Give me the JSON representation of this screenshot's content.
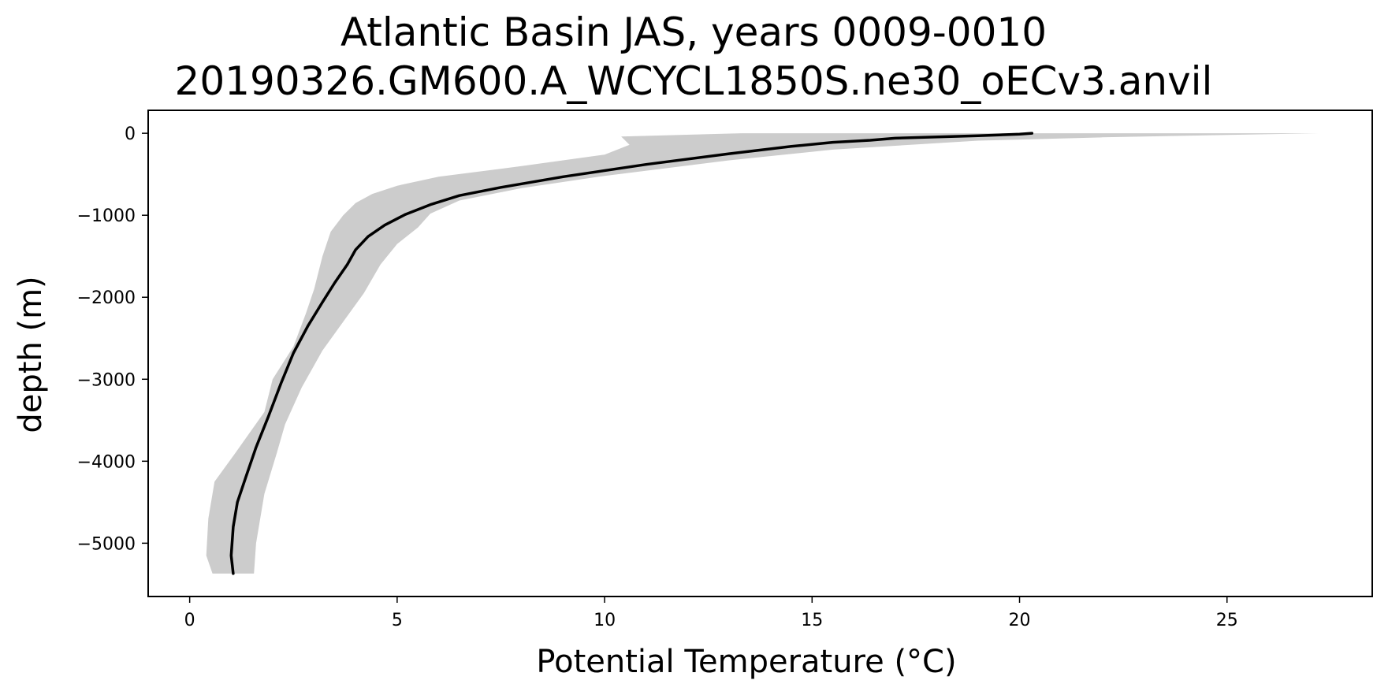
{
  "chart_data": {
    "type": "line",
    "title": "Atlantic Basin JAS, years 0009-0010",
    "subtitle": "20190326.GM600.A_WCYCL1850S.ne30_oECv3.anvil",
    "xlabel": "Potential Temperature (°C)",
    "ylabel": "depth (m)",
    "xlim": [
      -1.0,
      28.5
    ],
    "ylim": [
      -5650,
      280
    ],
    "xticks": [
      0,
      5,
      10,
      15,
      20,
      25
    ],
    "yticks": [
      0,
      -1000,
      -2000,
      -3000,
      -4000,
      -5000
    ],
    "xtick_labels": [
      "0",
      "5",
      "10",
      "15",
      "20",
      "25"
    ],
    "ytick_labels": [
      "0",
      "−1000",
      "−2000",
      "−3000",
      "−4000",
      "−5000"
    ],
    "grid": false,
    "colors": {
      "mean_line": "#000000",
      "spread_band": "#cccccc"
    },
    "series": [
      {
        "name": "mean",
        "points": [
          [
            20.3,
            0
          ],
          [
            20.0,
            -10
          ],
          [
            19.0,
            -30
          ],
          [
            17.0,
            -60
          ],
          [
            16.4,
            -85
          ],
          [
            15.5,
            -110
          ],
          [
            14.5,
            -160
          ],
          [
            13.0,
            -250
          ],
          [
            11.0,
            -380
          ],
          [
            9.0,
            -530
          ],
          [
            7.5,
            -660
          ],
          [
            6.5,
            -760
          ],
          [
            5.8,
            -870
          ],
          [
            5.2,
            -990
          ],
          [
            4.7,
            -1120
          ],
          [
            4.3,
            -1260
          ],
          [
            4.0,
            -1420
          ],
          [
            3.8,
            -1600
          ],
          [
            3.5,
            -1820
          ],
          [
            3.2,
            -2060
          ],
          [
            2.85,
            -2350
          ],
          [
            2.5,
            -2680
          ],
          [
            2.2,
            -3050
          ],
          [
            1.9,
            -3450
          ],
          [
            1.6,
            -3830
          ],
          [
            1.35,
            -4200
          ],
          [
            1.15,
            -4500
          ],
          [
            1.05,
            -4800
          ],
          [
            1.0,
            -5150
          ],
          [
            1.05,
            -5370
          ]
        ]
      },
      {
        "name": "spread",
        "upper": [
          [
            27.2,
            0
          ],
          [
            25.0,
            -20
          ],
          [
            22.0,
            -50
          ],
          [
            19.0,
            -90
          ],
          [
            15.5,
            -200
          ],
          [
            13.0,
            -330
          ],
          [
            10.0,
            -520
          ],
          [
            8.0,
            -670
          ],
          [
            6.5,
            -820
          ],
          [
            5.8,
            -980
          ],
          [
            5.5,
            -1150
          ],
          [
            5.0,
            -1350
          ],
          [
            4.6,
            -1600
          ],
          [
            4.2,
            -1950
          ],
          [
            3.7,
            -2300
          ],
          [
            3.2,
            -2650
          ],
          [
            2.7,
            -3100
          ],
          [
            2.3,
            -3550
          ],
          [
            2.1,
            -3900
          ],
          [
            1.8,
            -4400
          ],
          [
            1.6,
            -5000
          ],
          [
            1.55,
            -5370
          ]
        ],
        "lower": [
          [
            13.3,
            0
          ],
          [
            10.4,
            -40
          ],
          [
            10.6,
            -140
          ],
          [
            10.0,
            -260
          ],
          [
            8.0,
            -400
          ],
          [
            6.0,
            -530
          ],
          [
            5.0,
            -640
          ],
          [
            4.4,
            -740
          ],
          [
            4.0,
            -850
          ],
          [
            3.7,
            -1000
          ],
          [
            3.4,
            -1200
          ],
          [
            3.2,
            -1500
          ],
          [
            3.0,
            -1900
          ],
          [
            2.8,
            -2200
          ],
          [
            2.5,
            -2600
          ],
          [
            2.0,
            -3000
          ],
          [
            1.8,
            -3400
          ],
          [
            1.1,
            -3900
          ],
          [
            0.6,
            -4250
          ],
          [
            0.45,
            -4700
          ],
          [
            0.4,
            -5150
          ],
          [
            0.55,
            -5370
          ]
        ]
      }
    ]
  }
}
